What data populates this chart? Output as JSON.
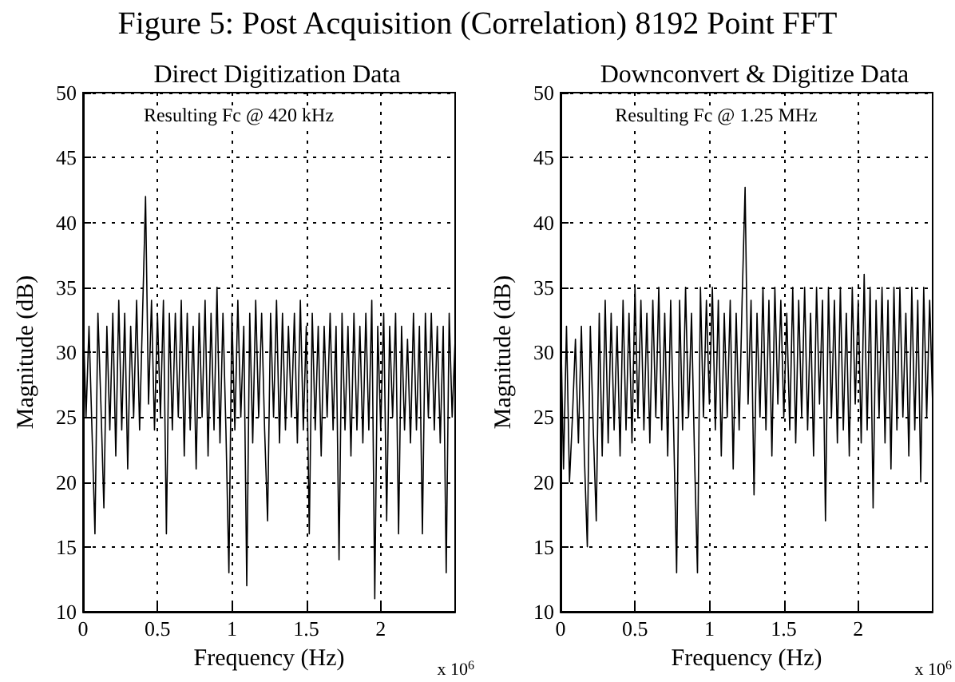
{
  "chart_data": [
    {
      "type": "line",
      "title": "Figure 5: Post Acquisition (Correlation) 8192 Point FFT",
      "subtitle": "Direct Digitization Data",
      "xlabel": "Frequency (Hz)",
      "ylabel": "Magnitude (dB)",
      "annotations": [
        "Resulting Fc @ 420 kHz",
        "x 10$^{6}$"
      ],
      "x": [
        0,
        0.02,
        0.04,
        0.06,
        0.08,
        0.1,
        0.12,
        0.14,
        0.16,
        0.18,
        0.2,
        0.22,
        0.24,
        0.26,
        0.28,
        0.3,
        0.32,
        0.34,
        0.36,
        0.38,
        0.4,
        0.42,
        0.44,
        0.46,
        0.48,
        0.5,
        0.52,
        0.54,
        0.56,
        0.58,
        0.6,
        0.62,
        0.64,
        0.66,
        0.68,
        0.7,
        0.72,
        0.74,
        0.76,
        0.78,
        0.8,
        0.82,
        0.84,
        0.86,
        0.88,
        0.9,
        0.92,
        0.94,
        0.96,
        0.98,
        1,
        1.02,
        1.04,
        1.06,
        1.08,
        1.1,
        1.12,
        1.14,
        1.16,
        1.18,
        1.2,
        1.22,
        1.24,
        1.26,
        1.28,
        1.3,
        1.32,
        1.34,
        1.36,
        1.38,
        1.4,
        1.42,
        1.44,
        1.46,
        1.48,
        1.5,
        1.52,
        1.54,
        1.56,
        1.58,
        1.6,
        1.62,
        1.64,
        1.66,
        1.68,
        1.7,
        1.72,
        1.74,
        1.76,
        1.78,
        1.8,
        1.82,
        1.84,
        1.86,
        1.88,
        1.9,
        1.92,
        1.94,
        1.96,
        1.98,
        2,
        2.02,
        2.04,
        2.06,
        2.08,
        2.1,
        2.12,
        2.14,
        2.16,
        2.18,
        2.2,
        2.22,
        2.24,
        2.26,
        2.28,
        2.3,
        2.32,
        2.34,
        2.36,
        2.38,
        2.4,
        2.42,
        2.44,
        2.46,
        2.48,
        2.5
      ],
      "series": [
        {
          "color": "#000000",
          "values": [
            33,
            25,
            32,
            24,
            16,
            33,
            26,
            18,
            32,
            24,
            33,
            22,
            34,
            24,
            33,
            21,
            32,
            25,
            34,
            24,
            33,
            42,
            26,
            34,
            24,
            33,
            25,
            34,
            16,
            33,
            24,
            33,
            25,
            34,
            22,
            33,
            24,
            32,
            21,
            33,
            25,
            34,
            22,
            33,
            24,
            35,
            23,
            33,
            24,
            13,
            33,
            24,
            34,
            25,
            32,
            12,
            33,
            23,
            34,
            25,
            33,
            24,
            17,
            33,
            25,
            34,
            23,
            33,
            24,
            32,
            25,
            33,
            23,
            34,
            24,
            32,
            16,
            33,
            24,
            32,
            22,
            32,
            25,
            33,
            24,
            32,
            14,
            33,
            24,
            32,
            22,
            33,
            24,
            32,
            23,
            33,
            24,
            34,
            11,
            32,
            24,
            33,
            17,
            32,
            25,
            33,
            16,
            32,
            24,
            31,
            23,
            33,
            24,
            32,
            16,
            33,
            25,
            33,
            24,
            32,
            23,
            32,
            13,
            33,
            25,
            31
          ]
        }
      ],
      "xlim": [
        0,
        2.5
      ],
      "xticks": [
        0,
        0.5,
        1,
        1.5,
        2
      ],
      "ylim": [
        10,
        50
      ],
      "yticks": [
        10,
        15,
        20,
        25,
        30,
        35,
        40,
        45,
        50
      ],
      "grid": true,
      "marker": "none",
      "line_style": "solid"
    },
    {
      "type": "line",
      "subtitle": "Downconvert & Digitize Data",
      "xlabel": "Frequency (Hz)",
      "ylabel": "Magnitude (dB)",
      "annotations": [
        "Resulting Fc @ 1.25 MHz",
        "x 10$^{6}$"
      ],
      "x": [
        0,
        0.02,
        0.04,
        0.06,
        0.08,
        0.1,
        0.12,
        0.14,
        0.16,
        0.18,
        0.2,
        0.22,
        0.24,
        0.26,
        0.28,
        0.3,
        0.32,
        0.34,
        0.36,
        0.38,
        0.4,
        0.42,
        0.44,
        0.46,
        0.48,
        0.5,
        0.52,
        0.54,
        0.56,
        0.58,
        0.6,
        0.62,
        0.64,
        0.66,
        0.68,
        0.7,
        0.72,
        0.74,
        0.76,
        0.78,
        0.8,
        0.82,
        0.84,
        0.86,
        0.88,
        0.9,
        0.92,
        0.94,
        0.96,
        0.98,
        1,
        1.02,
        1.04,
        1.06,
        1.08,
        1.1,
        1.12,
        1.14,
        1.16,
        1.18,
        1.2,
        1.22,
        1.24,
        1.26,
        1.28,
        1.3,
        1.32,
        1.34,
        1.36,
        1.38,
        1.4,
        1.42,
        1.44,
        1.46,
        1.48,
        1.5,
        1.52,
        1.54,
        1.56,
        1.58,
        1.6,
        1.62,
        1.64,
        1.66,
        1.68,
        1.7,
        1.72,
        1.74,
        1.76,
        1.78,
        1.8,
        1.82,
        1.84,
        1.86,
        1.88,
        1.9,
        1.92,
        1.94,
        1.96,
        1.98,
        2,
        2.02,
        2.04,
        2.06,
        2.08,
        2.1,
        2.12,
        2.14,
        2.16,
        2.18,
        2.2,
        2.22,
        2.24,
        2.26,
        2.28,
        2.3,
        2.32,
        2.34,
        2.36,
        2.38,
        2.4,
        2.42,
        2.44,
        2.46,
        2.48,
        2.5
      ],
      "series": [
        {
          "color": "#000000",
          "values": [
            33,
            21,
            32,
            20,
            25,
            31,
            23,
            32,
            22,
            15,
            32,
            24,
            17,
            33,
            22,
            34,
            23,
            33,
            24,
            32,
            22,
            34,
            24,
            33,
            23,
            35,
            25,
            34,
            24,
            33,
            23,
            34,
            25,
            35,
            24,
            33,
            22,
            34,
            24,
            13,
            34,
            24,
            35,
            25,
            33,
            22,
            13,
            35,
            25,
            34,
            26,
            35,
            24,
            34,
            22,
            33,
            25,
            34,
            21,
            33,
            24,
            34,
            42.7,
            26,
            34,
            19,
            33,
            25,
            35,
            24,
            34,
            22,
            35,
            26,
            34,
            25,
            33,
            24,
            35,
            23,
            34,
            25,
            35,
            24,
            33,
            22,
            35,
            26,
            34,
            17,
            35,
            25,
            34,
            23,
            35,
            24,
            33,
            22,
            35,
            26,
            34,
            23,
            36,
            24,
            35,
            18,
            34,
            25,
            35,
            23,
            34,
            21,
            35,
            24,
            35,
            25,
            33,
            22,
            35,
            24,
            34,
            20,
            35,
            25,
            34,
            26
          ]
        }
      ],
      "xlim": [
        0,
        2.5
      ],
      "xticks": [
        0,
        0.5,
        1,
        1.5,
        2
      ],
      "ylim": [
        10,
        50
      ],
      "yticks": [
        10,
        15,
        20,
        25,
        30,
        35,
        40,
        45,
        50
      ],
      "grid": true,
      "marker": "none",
      "line_style": "solid"
    }
  ]
}
